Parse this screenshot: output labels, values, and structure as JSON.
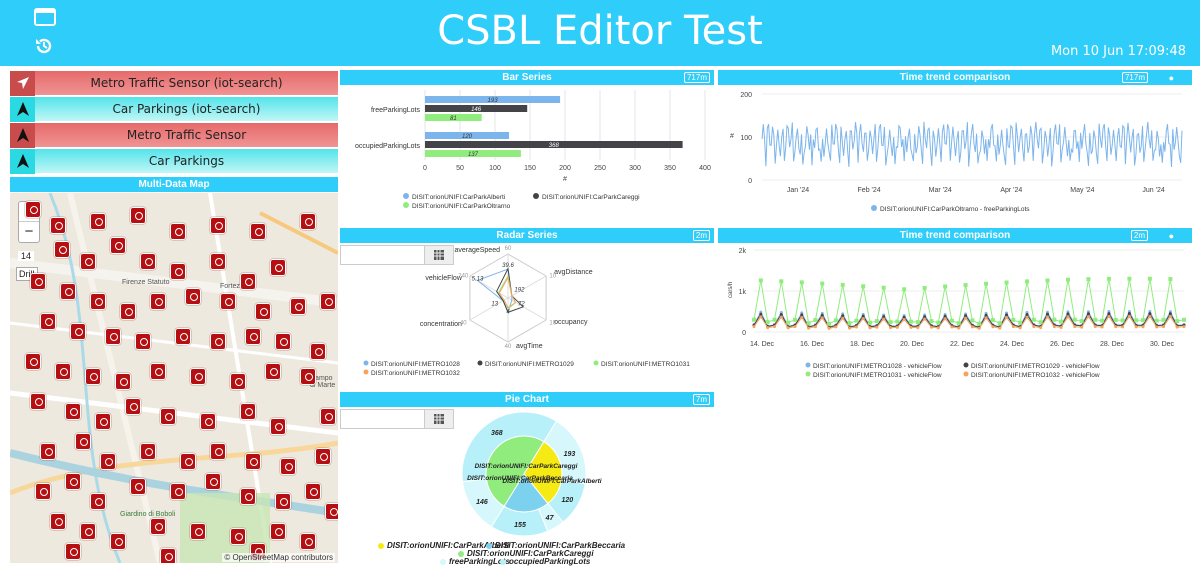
{
  "header": {
    "title": "CSBL Editor Test",
    "clock": "Mon 10 Jun 17:09:48"
  },
  "buttons": [
    {
      "label": "Metro Traffic Sensor (iot-search)",
      "style": "red",
      "icon": "navigation-arrow-icon"
    },
    {
      "label": "Car Parkings (iot-search)",
      "style": "cyan",
      "icon": "navigation-arrow-icon"
    },
    {
      "label": "Metro Traffic Sensor",
      "style": "red",
      "icon": "navigation-arrow-icon"
    },
    {
      "label": "Car Parkings",
      "style": "cyan",
      "icon": "navigation-arrow-icon"
    }
  ],
  "map": {
    "title": "Multi-Data Map",
    "zoom_in": "+",
    "zoom_out": "−",
    "zoom_level": "14",
    "drill": "Drill",
    "attribution": "© OpenStreetMap contributors",
    "labels": [
      "Firenze Statuto",
      "Fortezza",
      "Giardino di Boboli",
      "Campo di Marte"
    ]
  },
  "widgets": {
    "bar": {
      "title": "Bar Series",
      "badge": "717m"
    },
    "trend1": {
      "title": "Time trend comparison",
      "badge": "717m"
    },
    "radar": {
      "title": "Radar Series",
      "badge": "2m"
    },
    "trend2": {
      "title": "Time trend comparison",
      "badge": "2m"
    },
    "pie": {
      "title": "Pie Chart",
      "badge": "7m"
    }
  },
  "chart_data": [
    {
      "type": "bar",
      "orientation": "horizontal",
      "categories": [
        "freeParkingLots",
        "occupiedParkingLots"
      ],
      "series": [
        {
          "name": "DISIT:orionUNIFI:CarParkAlberti",
          "color": "#7cb5ec",
          "values": [
            193,
            120
          ]
        },
        {
          "name": "DISIT:orionUNIFI:CarParkCareggi",
          "color": "#434348",
          "values": [
            146,
            368
          ]
        },
        {
          "name": "DISIT:orionUNIFI:CarParkOltrarno",
          "color": "#90ed7d",
          "values": [
            81,
            137
          ]
        }
      ],
      "xlabel": "#",
      "xlim": [
        0,
        400
      ],
      "xticks": [
        0,
        50,
        100,
        150,
        200,
        250,
        300,
        350,
        400
      ]
    },
    {
      "type": "line",
      "series": [
        {
          "name": "DISIT:orionUNIFI:CarParkOltrarno - freeParkingLots",
          "color": "#7cb5ec"
        }
      ],
      "ylabel": "#",
      "ylim": [
        0,
        200
      ],
      "yticks": [
        0,
        100,
        200
      ],
      "xticks": [
        "Jan '24",
        "Feb '24",
        "Mar '24",
        "Apr '24",
        "May '24",
        "Jun '24"
      ],
      "pattern": {
        "baseline": 95,
        "amplitude": 35,
        "min": 30,
        "max": 135
      }
    },
    {
      "type": "radar",
      "axes": [
        "averageSpeed",
        "avgDistance",
        "occupancy",
        "avgTime",
        "concentration",
        "vehicleFlow"
      ],
      "axis_max": [
        60,
        10,
        10,
        40,
        40,
        240
      ],
      "series": [
        {
          "name": "DISIT:orionUNIFI:METRO1028",
          "color": "#7cb5ec",
          "values": [
            39.6,
            1,
            1,
            13,
            5.13,
            192
          ]
        },
        {
          "name": "DISIT:orionUNIFI:METRO1029",
          "color": "#434348",
          "values": [
            40,
            1,
            4,
            13,
            5,
            72
          ]
        },
        {
          "name": "DISIT:orionUNIFI:METRO1031",
          "color": "#90ed7d",
          "values": [
            30,
            1,
            2,
            10,
            4,
            60
          ]
        },
        {
          "name": "DISIT:orionUNIFI:METRO1032",
          "color": "#f7a35c",
          "values": [
            28,
            1,
            2,
            9,
            4,
            55
          ]
        }
      ],
      "labels": [
        "39.6",
        "192",
        "72",
        "4",
        "13",
        "5.13"
      ]
    },
    {
      "type": "line",
      "ylabel": "cars/h",
      "ylim": [
        0,
        2000
      ],
      "yticks": [
        "0",
        "1k",
        "2k"
      ],
      "xticks": [
        "14. Dec",
        "16. Dec",
        "18. Dec",
        "20. Dec",
        "22. Dec",
        "24. Dec",
        "26. Dec",
        "28. Dec",
        "30. Dec"
      ],
      "series": [
        {
          "name": "DISIT:orionUNIFI:METRO1028 - vehicleFlow",
          "color": "#7cb5ec",
          "marker": "circle",
          "peak": 500,
          "trough": 150
        },
        {
          "name": "DISIT:orionUNIFI:METRO1029 - vehicleFlow",
          "color": "#434348",
          "marker": "diamond",
          "peak": 450,
          "trough": 140
        },
        {
          "name": "DISIT:orionUNIFI:METRO1031 - vehicleFlow",
          "color": "#90ed7d",
          "marker": "square",
          "peak": 1300,
          "trough": 250
        },
        {
          "name": "DISIT:orionUNIFI:METRO1032 - vehicleFlow",
          "color": "#f7a35c",
          "marker": "triangle",
          "peak": 380,
          "trough": 110
        }
      ]
    },
    {
      "type": "pie",
      "inner": [
        {
          "name": "DISIT:orionUNIFI:CarParkAlberti",
          "color": "#f5ea14",
          "value": 313,
          "label": ""
        },
        {
          "name": "DISIT:orionUNIFI:CarParkBeccaria",
          "color": "#7cd1ef",
          "value": 202,
          "label": ""
        },
        {
          "name": "DISIT:orionUNIFI:CarParkCareggi",
          "color": "#90ed7d",
          "value": 514,
          "label": ""
        }
      ],
      "outer": [
        {
          "value": 193,
          "label": "193",
          "color": "#d6f7fc"
        },
        {
          "value": 120,
          "label": "120",
          "color": "#b8f0fa"
        },
        {
          "value": 47,
          "label": "47",
          "color": "#d6f7fc"
        },
        {
          "value": 155,
          "label": "155",
          "color": "#b8f0fa"
        },
        {
          "value": 146,
          "label": "146",
          "color": "#d6f7fc"
        },
        {
          "value": 368,
          "label": "368",
          "color": "#b8f0fa"
        }
      ],
      "slice_labels": [
        "DISIT:orionUNIFI:CarParkCareggi",
        "DISIT:orionUNIFI:CarParkAlberti",
        "DISIT:orionUNIFI:CarParkBeccaria"
      ],
      "legend": [
        {
          "name": "DISIT:orionUNIFI:CarParkAlberti",
          "color": "#f5ea14"
        },
        {
          "name": "DISIT:orionUNIFI:CarParkBeccaria",
          "color": "#7cd1ef"
        },
        {
          "name": "DISIT:orionUNIFI:CarParkCareggi",
          "color": "#90ed7d"
        },
        {
          "name": "freeParkingLots",
          "color": "#d6f7fc"
        },
        {
          "name": "occupiedParkingLots",
          "color": "#b8f0fa"
        }
      ]
    }
  ]
}
